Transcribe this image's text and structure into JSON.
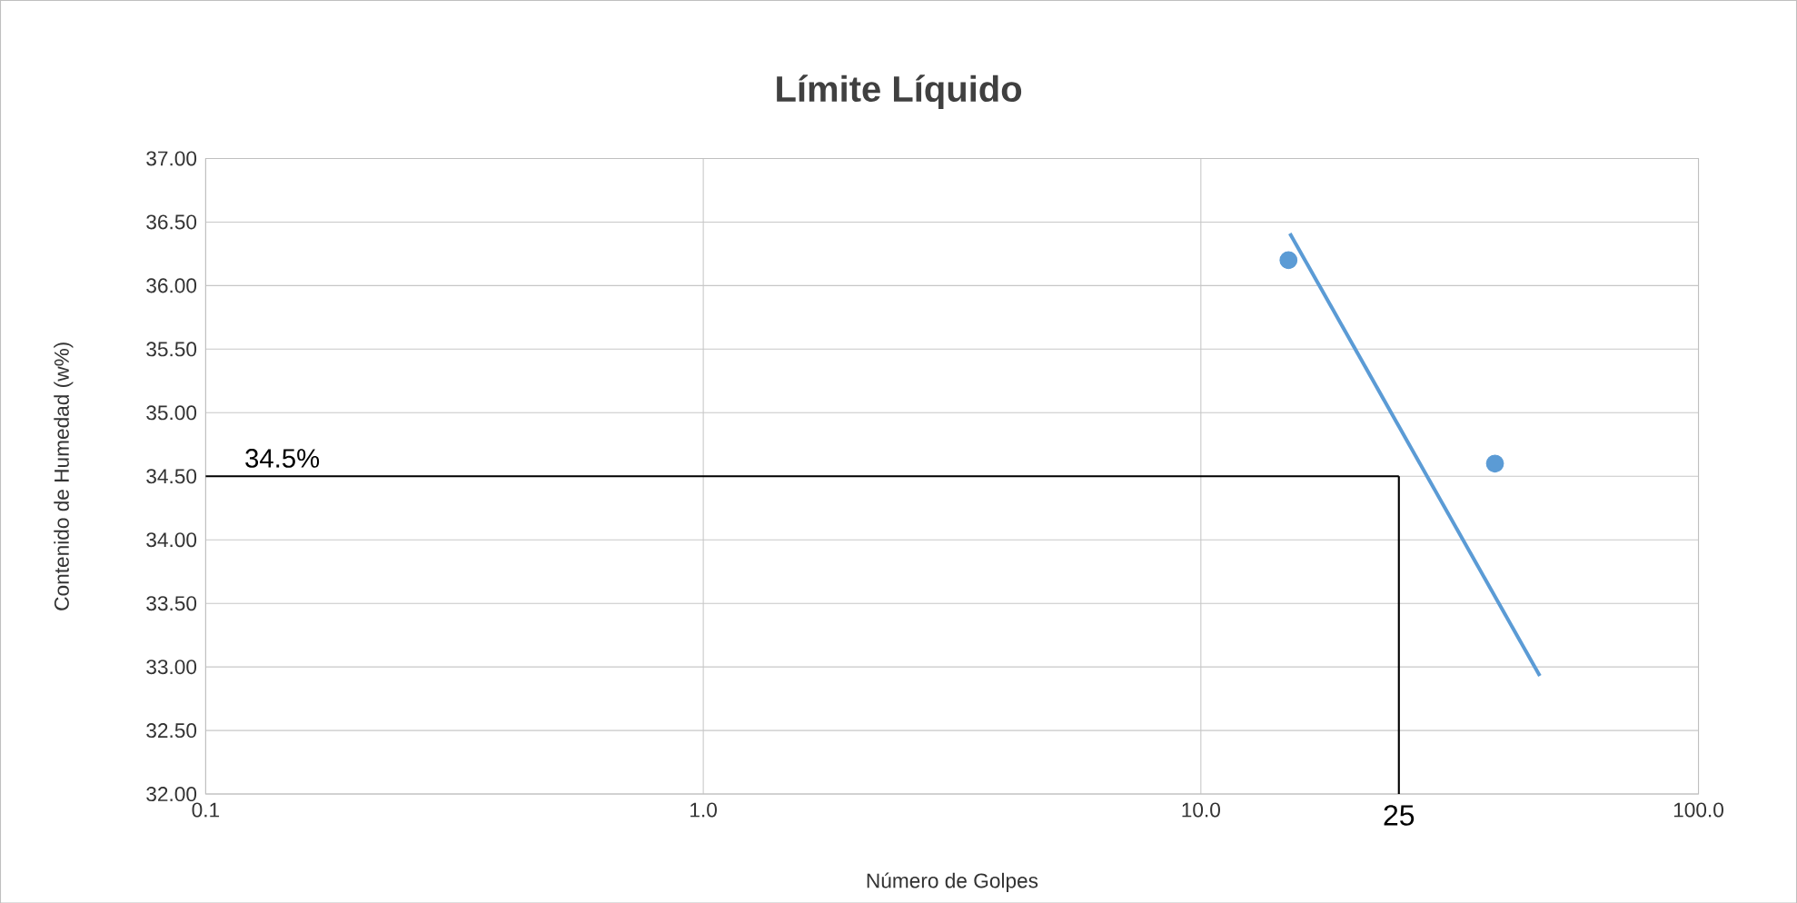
{
  "chart_data": {
    "type": "scatter",
    "title": "Límite Líquido",
    "xlabel": "Número de Golpes",
    "ylabel": "Contenido de Humedad (w%)",
    "log": "x",
    "grid": true,
    "marker": "circle",
    "xlim": [
      0.1,
      100
    ],
    "ylim": [
      32,
      37
    ],
    "xticks": [
      0.1,
      {
        "value": 1,
        "label": "1.0"
      },
      {
        "value": 10,
        "label": "10.0"
      },
      {
        "value": 100,
        "label": "100.0"
      }
    ],
    "yticks": [
      {
        "value": 32,
        "label": "32.00"
      },
      {
        "value": 32.5,
        "label": "32.50"
      },
      {
        "value": 33,
        "label": "33.00"
      },
      {
        "value": 33.5,
        "label": "33.50"
      },
      {
        "value": 34,
        "label": "34.00"
      },
      {
        "value": 34.5,
        "label": "34.50"
      },
      {
        "value": 35,
        "label": "35.00"
      },
      {
        "value": 35.5,
        "label": "35.50"
      },
      {
        "value": 36,
        "label": "36.00"
      },
      {
        "value": 36.5,
        "label": "36.50"
      },
      {
        "value": 37,
        "label": "37.00"
      }
    ],
    "series": [
      {
        "color": "#5b9bd5",
        "x": [
          15,
          39
        ],
        "values": [
          36.2,
          34.6
        ]
      },
      {
        "type": "line",
        "color": "#5b9bd5",
        "marker": "none",
        "x": [
          15.1,
          48
        ],
        "values": [
          36.41,
          32.93
        ]
      }
    ],
    "ref_lines": [
      {
        "axis": "y",
        "value": 34.5,
        "label": "34.5%",
        "color": "#000000"
      },
      {
        "axis": "x",
        "value": 25,
        "label": "25",
        "color": "#000000"
      }
    ]
  }
}
